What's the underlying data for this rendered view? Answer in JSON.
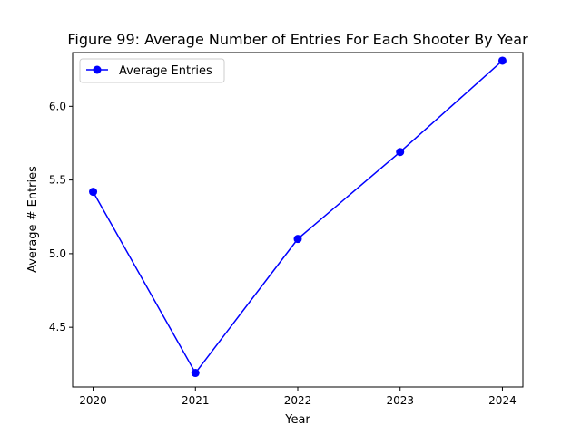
{
  "chart_data": {
    "type": "line",
    "title": "Figure 99: Average Number of Entries For Each Shooter By Year",
    "xlabel": "Year",
    "ylabel": "Average # Entries",
    "x": [
      2020,
      2021,
      2022,
      2023,
      2024
    ],
    "x_tick_labels": [
      "2020",
      "2021",
      "2022",
      "2023",
      "2024"
    ],
    "y_ticks": [
      4.5,
      5.0,
      5.5,
      6.0
    ],
    "y_tick_labels": [
      "4.5",
      "5.0",
      "5.5",
      "6.0"
    ],
    "xlim": [
      2019.8,
      2024.2
    ],
    "ylim": [
      4.095,
      6.365
    ],
    "grid": false,
    "legend_position": "top-left",
    "series": [
      {
        "name": "Average Entries",
        "color": "#0000ff",
        "marker": "circle",
        "values": [
          5.42,
          4.19,
          5.1,
          5.69,
          6.31
        ]
      }
    ]
  }
}
